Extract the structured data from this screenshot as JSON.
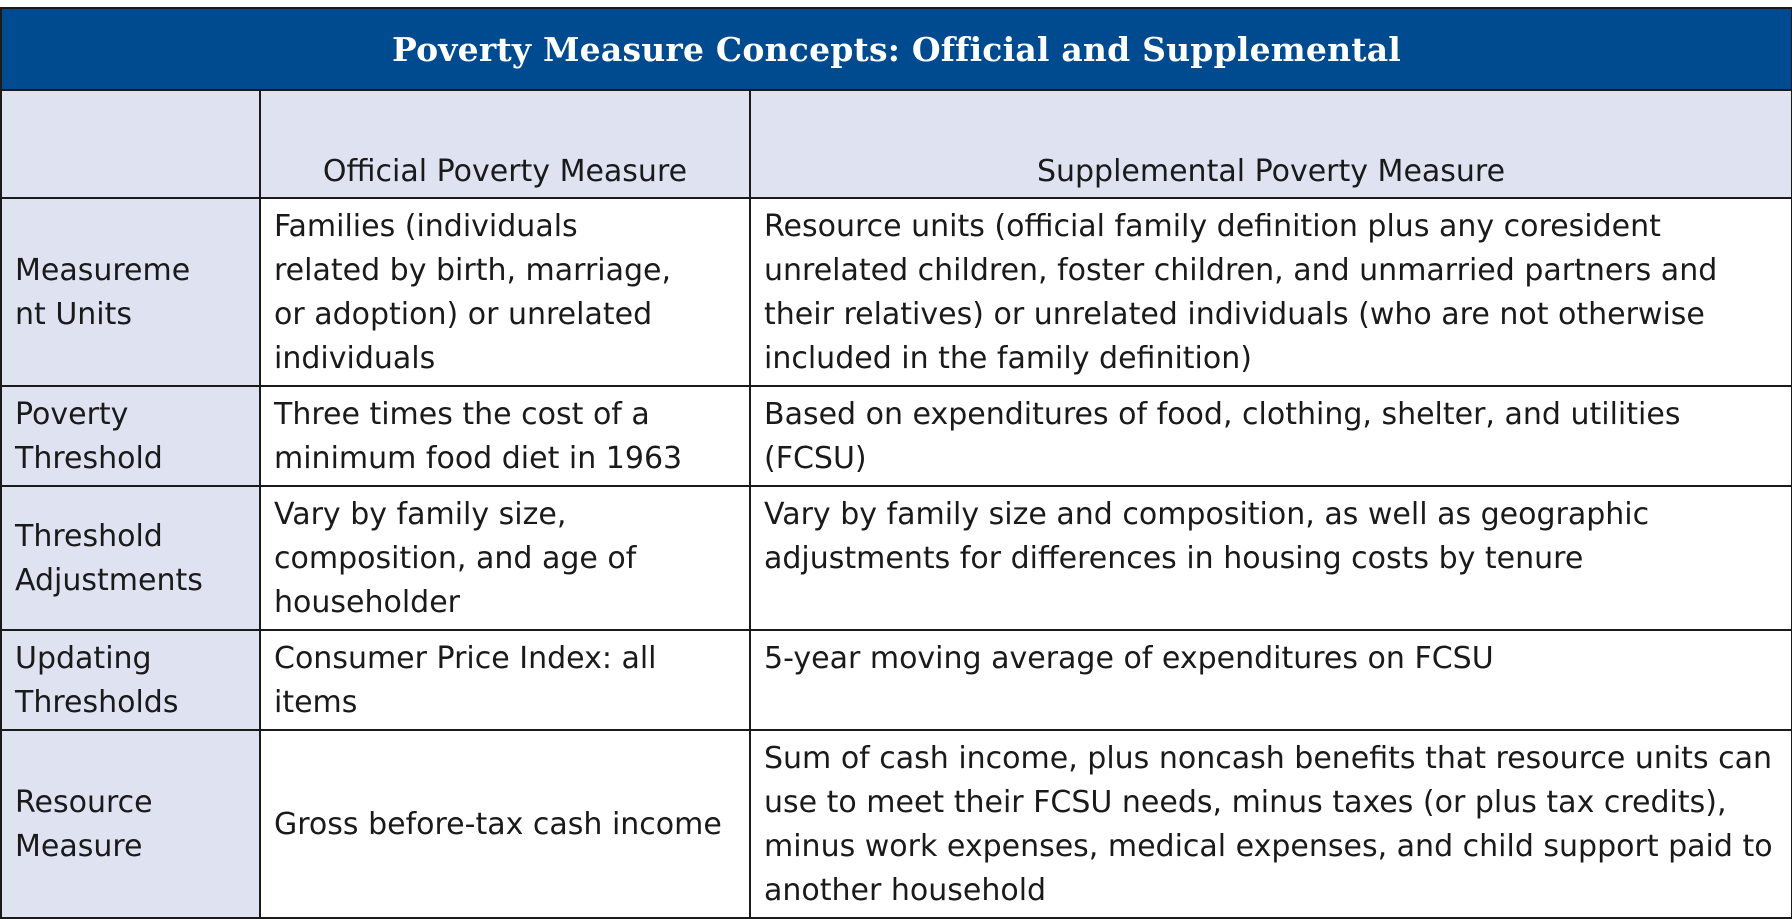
{
  "table": {
    "title": "Poverty Measure Concepts: Official and Supplemental",
    "columns": [
      "",
      "Official Poverty Measure",
      "Supplemental Poverty Measure"
    ],
    "rows": [
      {
        "label": "Measurement Units",
        "official": "Families (individuals related by birth, marriage, or adoption) or unrelated individuals",
        "supplemental": "Resource units (official family definition plus any coresident unrelated children, foster children, and unmarried partners and their relatives) or unrelated individuals (who are not otherwise included in the family definition)"
      },
      {
        "label": "Poverty Threshold",
        "official": "Three times the cost of a minimum food diet in 1963",
        "supplemental": "Based on expenditures of food, clothing, shelter, and utilities (FCSU)"
      },
      {
        "label": "Threshold Adjustments",
        "official": "Vary by family size, composition, and age of householder",
        "supplemental": "Vary by family size and composition, as well as geographic adjustments for differences in housing costs by tenure"
      },
      {
        "label": "Updating Thresholds",
        "official": "Consumer Price Index: all items",
        "supplemental": "5-year moving average of expenditures on FCSU"
      },
      {
        "label": "Resource Measure",
        "official": "Gross before-tax cash income",
        "supplemental": "Sum of cash income, plus noncash benefits that resource units can use to meet their FCSU needs, minus taxes (or plus tax credits), minus work expenses, medical expenses, and child support paid to another household"
      }
    ]
  },
  "colors": {
    "title_bg": "#004a8f",
    "header_bg": "#dfe3f1",
    "border": "#1a1a1a"
  }
}
